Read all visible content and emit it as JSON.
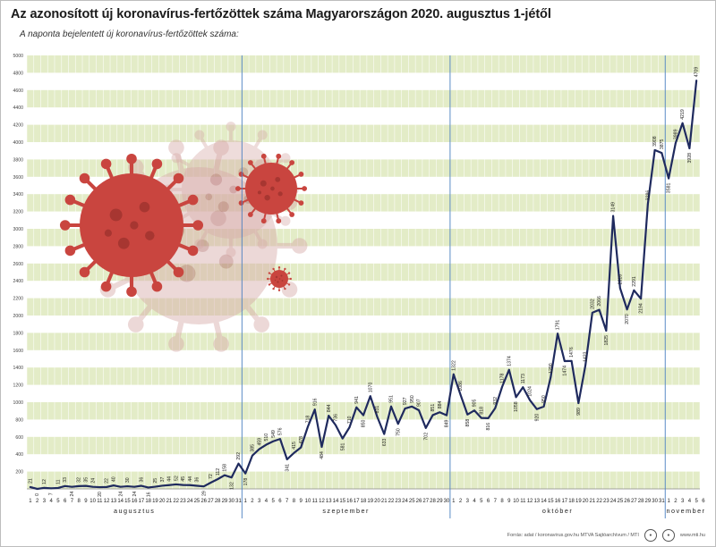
{
  "title": "Az azonosított új koronavírus-fertőzöttek száma Magyarországon 2020. augusztus 1-jétől",
  "subtitle": "A naponta bejelentett új koronavírus-fertőzöttek száma:",
  "footer": {
    "source": "Forrás: adat / koronavirus.gov.hu  MTVA Sajtóarchívum / MTI",
    "site": "www.mti.hu"
  },
  "colors": {
    "line": "#1f2a5e",
    "band": "#e3ecc7",
    "month_divider": "#4a7fc0",
    "virus": "#c9453f"
  },
  "chart_data": {
    "type": "line",
    "title": "Az azonosított új koronavírus-fertőzöttek száma Magyarországon 2020. augusztus 1-jétől",
    "subtitle": "A naponta bejelentett új koronavírus-fertőzöttek száma:",
    "ylim": [
      0,
      5000
    ],
    "yticks": [
      200,
      400,
      600,
      800,
      1000,
      1200,
      1400,
      1600,
      1800,
      2000,
      2200,
      2400,
      2600,
      2800,
      3000,
      3200,
      3400,
      3600,
      3800,
      4000,
      4200,
      4400,
      4600,
      4800,
      5000
    ],
    "months": [
      {
        "name": "augusztus",
        "days": 31
      },
      {
        "name": "szeptember",
        "days": 30
      },
      {
        "name": "október",
        "days": 31
      },
      {
        "name": "november",
        "days": 6
      }
    ],
    "grid": "horizontal bands",
    "series": [
      {
        "values": [
          21,
          0,
          12,
          7,
          11,
          33,
          24,
          32,
          35,
          24,
          20,
          22,
          40,
          24,
          30,
          24,
          36,
          16,
          25,
          37,
          44,
          52,
          45,
          44,
          36,
          29,
          72,
          112,
          158,
          132,
          292,
          178,
          385,
          459,
          510,
          549,
          576,
          341,
          415,
          478,
          718,
          916,
          484,
          844,
          736,
          581,
          710,
          941,
          850,
          1070,
          831,
          633,
          951,
          750,
          927,
          950,
          907,
          702,
          851,
          884,
          849,
          1322,
          1086,
          858,
          905,
          818,
          816,
          932,
          1178,
          1374,
          1058,
          1173,
          1024,
          920,
          950,
          1290,
          1791,
          1474,
          1476,
          989,
          1423,
          2032,
          2066,
          1825,
          3149,
          2316,
          2070,
          2291,
          2194,
          3286,
          3908,
          3875,
          3581,
          3989,
          4219,
          3928,
          4709
        ],
        "labels": [
          "21",
          "0",
          "12",
          "7",
          "11",
          "33",
          "24",
          "32",
          "35",
          "24",
          "20",
          "22",
          "40",
          "24",
          "30",
          "24",
          "36",
          "16",
          "25",
          "37",
          "44",
          "52",
          "45",
          "44",
          "36",
          "29",
          "72",
          "112",
          "158",
          "132",
          "292",
          "178",
          "385",
          "459",
          "510",
          "549",
          "576",
          "341",
          "415",
          "478",
          "718",
          "916",
          "484",
          "844",
          "736",
          "581",
          "710",
          "941",
          "850",
          "1070",
          "831",
          "633",
          "951",
          "750",
          "927",
          "950",
          "907",
          "702",
          "851",
          "884",
          "849",
          "1322",
          "1086",
          "858",
          "905",
          "818",
          "816",
          "932",
          "1178",
          "1374",
          "1058",
          "1173",
          "1024",
          "920",
          "950",
          "1290",
          "1791",
          "1474",
          "1476",
          "989",
          "1423",
          "2032",
          "2066",
          "1825",
          "3149",
          "2316",
          "2070",
          "2291",
          "2194",
          "3286",
          "3908",
          "3875",
          "3581",
          "3989",
          "4219",
          "3928",
          "4709"
        ]
      }
    ]
  }
}
